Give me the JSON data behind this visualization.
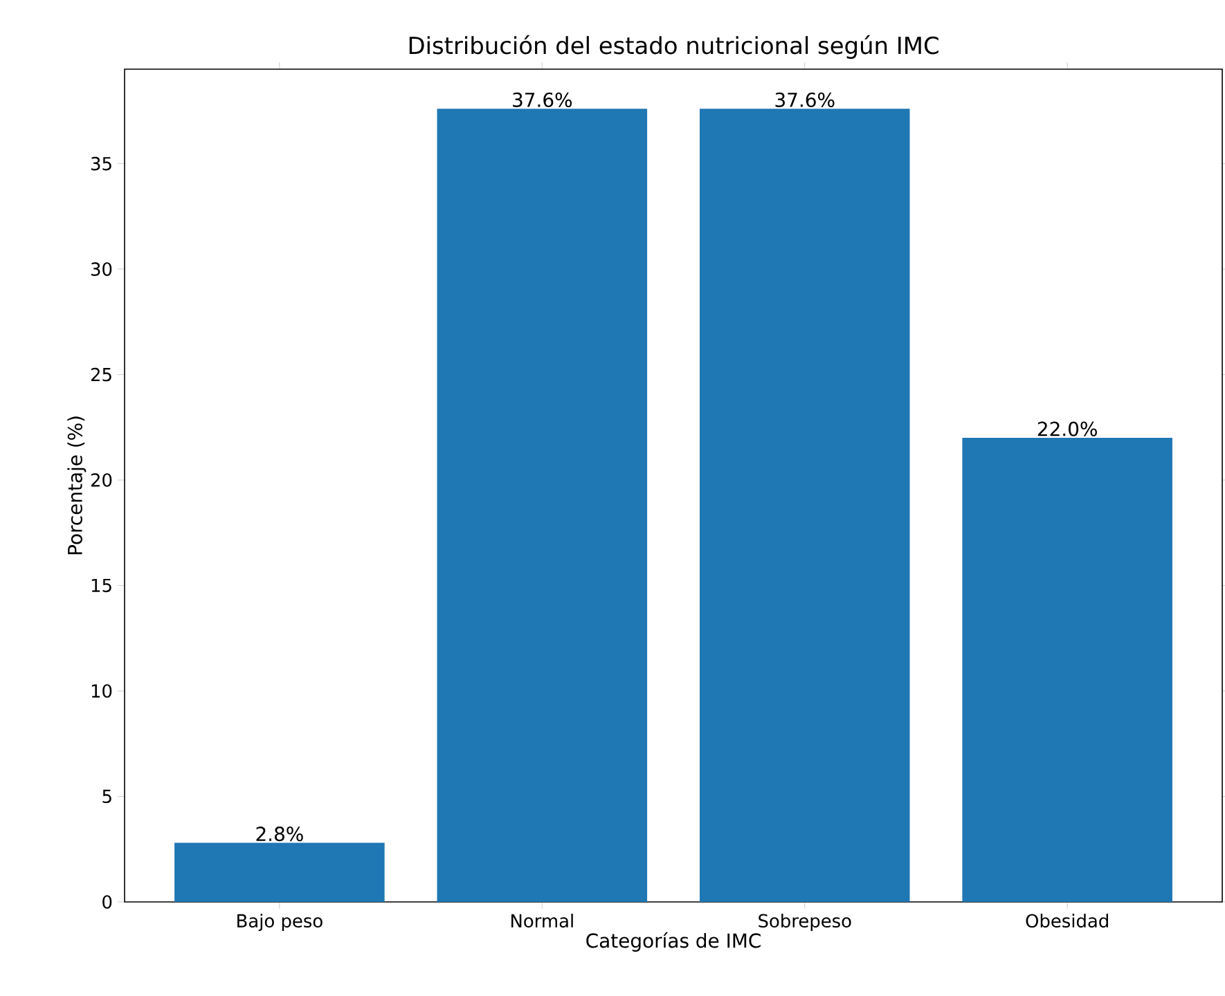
{
  "chart_data": {
    "type": "bar",
    "title": "Distribución del estado nutricional según IMC",
    "xlabel": "Categorías de IMC",
    "ylabel": "Porcentaje (%)",
    "categories": [
      "Bajo peso",
      "Normal",
      "Sobrepeso",
      "Obesidad"
    ],
    "values": [
      2.8,
      37.6,
      37.6,
      22.0
    ],
    "value_labels": [
      "2.8%",
      "37.6%",
      "37.6%",
      "22.0%"
    ],
    "color": "#1f77b4",
    "ylim": [
      0,
      39.48
    ],
    "yticks": [
      0,
      5,
      10,
      15,
      20,
      25,
      30,
      35
    ],
    "grid": false
  }
}
